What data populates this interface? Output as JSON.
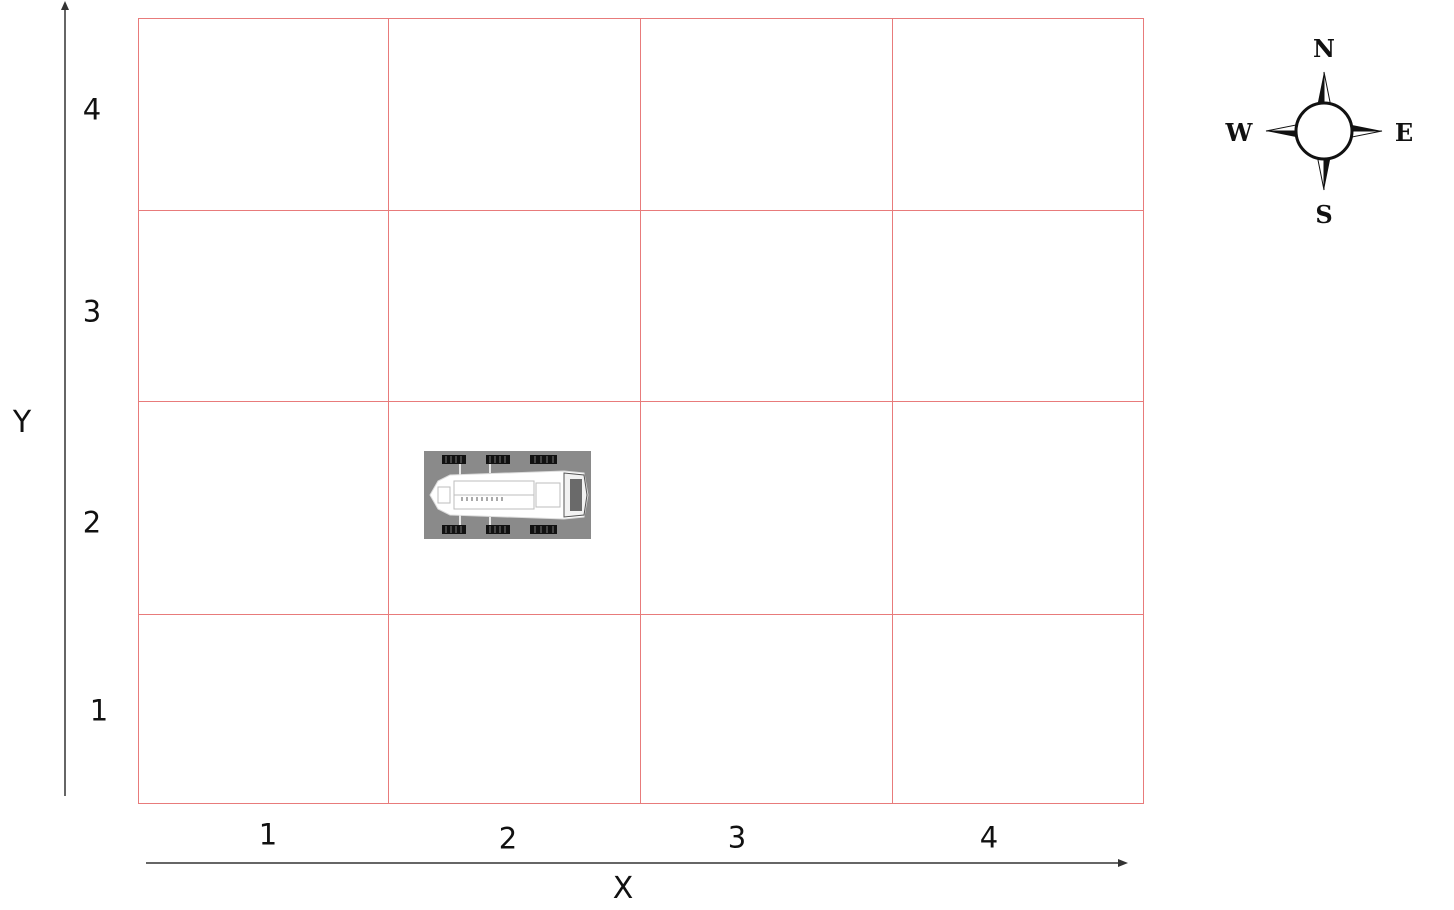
{
  "axes": {
    "x_label": "X",
    "y_label": "Y",
    "x_ticks": [
      "1",
      "2",
      "3",
      "4"
    ],
    "y_ticks": [
      "4",
      "3",
      "2",
      "1"
    ]
  },
  "grid": {
    "columns": 4,
    "rows": 4,
    "line_color": "#e87b7b"
  },
  "rover": {
    "cell_x": 2,
    "cell_y": 2,
    "facing": "E",
    "icon": "rover-icon"
  },
  "compass": {
    "north": "N",
    "south": "S",
    "east": "E",
    "west": "W"
  }
}
